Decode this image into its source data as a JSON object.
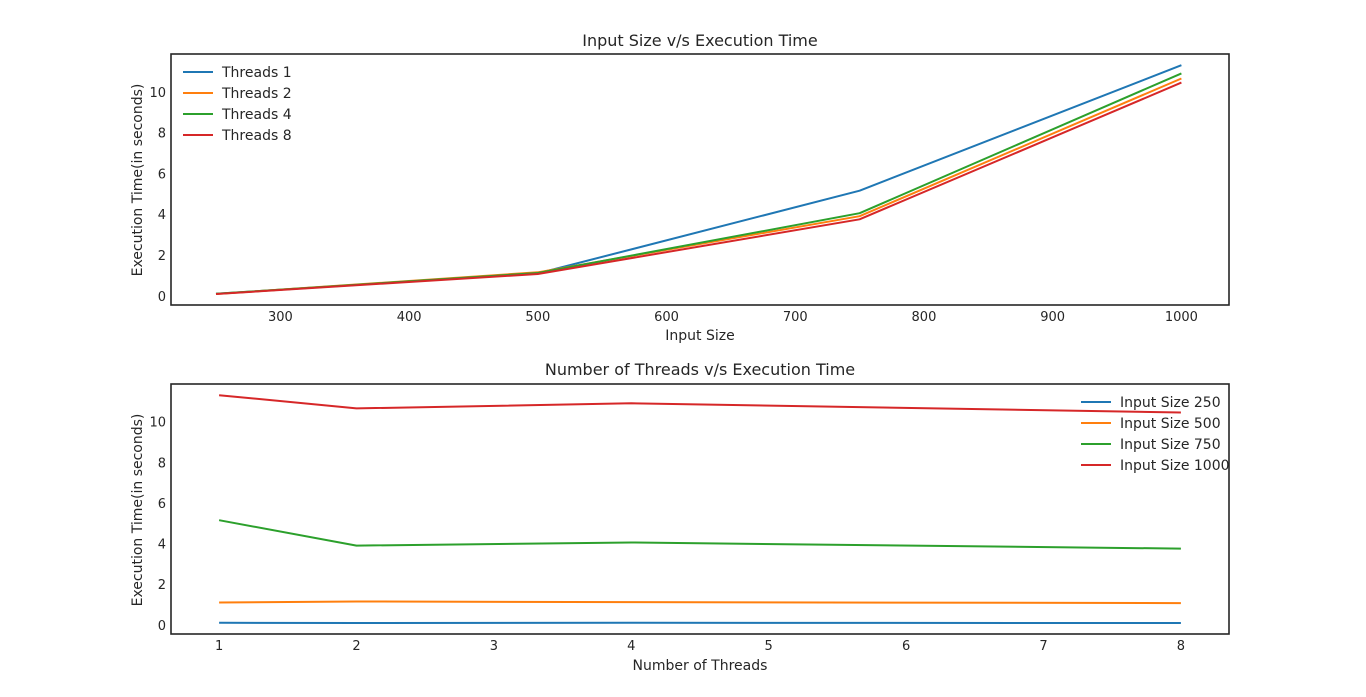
{
  "chart_data": [
    {
      "type": "line",
      "title": "Input Size v/s Execution Time",
      "xlabel": "Input Size",
      "ylabel": "Execution Time(in seconds)",
      "xlim": [
        215,
        1037
      ],
      "ylim": [
        -0.4,
        11.9
      ],
      "xticks": [
        300,
        400,
        500,
        600,
        700,
        800,
        900,
        1000
      ],
      "yticks": [
        0,
        2,
        4,
        6,
        8,
        10
      ],
      "grid": false,
      "legend": "top-left",
      "x": [
        250,
        500,
        750,
        1000
      ],
      "series": [
        {
          "name": "Threads 1",
          "color": "#1f77b4",
          "values": [
            0.15,
            1.15,
            5.2,
            11.35
          ]
        },
        {
          "name": "Threads 2",
          "color": "#ff7f0e",
          "values": [
            0.14,
            1.2,
            3.95,
            10.7
          ]
        },
        {
          "name": "Threads 4",
          "color": "#2ca02c",
          "values": [
            0.15,
            1.17,
            4.1,
            10.95
          ]
        },
        {
          "name": "Threads 8",
          "color": "#d62728",
          "values": [
            0.14,
            1.12,
            3.8,
            10.5
          ]
        }
      ]
    },
    {
      "type": "line",
      "title": "Number of Threads v/s Execution Time",
      "xlabel": "Number of Threads",
      "ylabel": "Execution Time(in seconds)",
      "xlim": [
        0.65,
        8.35
      ],
      "ylim": [
        -0.4,
        11.9
      ],
      "xticks": [
        1,
        2,
        3,
        4,
        5,
        6,
        7,
        8
      ],
      "yticks": [
        0,
        2,
        4,
        6,
        8,
        10
      ],
      "grid": false,
      "legend": "top-right",
      "x": [
        1,
        2,
        4,
        8
      ],
      "series": [
        {
          "name": "Input Size 250",
          "color": "#1f77b4",
          "values": [
            0.15,
            0.14,
            0.15,
            0.14
          ]
        },
        {
          "name": "Input Size 500",
          "color": "#ff7f0e",
          "values": [
            1.15,
            1.2,
            1.17,
            1.12
          ]
        },
        {
          "name": "Input Size 750",
          "color": "#2ca02c",
          "values": [
            5.2,
            3.95,
            4.1,
            3.8
          ]
        },
        {
          "name": "Input Size 1000",
          "color": "#d62728",
          "values": [
            11.35,
            10.7,
            10.95,
            10.5
          ]
        }
      ]
    }
  ]
}
